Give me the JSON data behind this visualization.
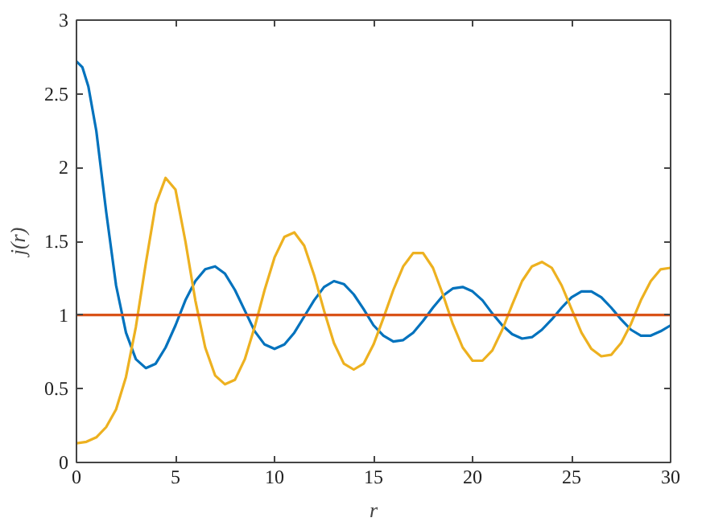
{
  "chart_data": {
    "type": "line",
    "xlabel": "r",
    "ylabel": "j(r)",
    "xlim": [
      0,
      30
    ],
    "ylim": [
      0,
      3
    ],
    "xticks": [
      0,
      5,
      10,
      15,
      20,
      25,
      30
    ],
    "yticks": [
      0,
      0.5,
      1,
      1.5,
      2,
      2.5,
      3
    ],
    "grid": false,
    "line_style": "solid",
    "marker": "none",
    "series": [
      {
        "color": "#0072bd",
        "x": [
          0,
          0.3,
          0.6,
          1.0,
          1.5,
          2.0,
          2.5,
          3.0,
          3.5,
          4.0,
          4.5,
          5.0,
          5.5,
          6.0,
          6.5,
          7.0,
          7.5,
          8.0,
          8.5,
          9.0,
          9.5,
          10.0,
          10.5,
          11.0,
          11.5,
          12.0,
          12.5,
          13.0,
          13.5,
          14.0,
          14.5,
          15.0,
          15.5,
          16.0,
          16.5,
          17.0,
          17.5,
          18.0,
          18.5,
          19.0,
          19.5,
          20.0,
          20.5,
          21.0,
          21.5,
          22.0,
          22.5,
          23.0,
          23.5,
          24.0,
          24.5,
          25.0,
          25.5,
          26.0,
          26.5,
          27.0,
          27.5,
          28.0,
          28.5,
          29.0,
          29.5,
          30.0
        ],
        "values": [
          2.72,
          2.68,
          2.55,
          2.25,
          1.7,
          1.2,
          0.88,
          0.7,
          0.64,
          0.67,
          0.78,
          0.93,
          1.1,
          1.23,
          1.31,
          1.33,
          1.28,
          1.17,
          1.03,
          0.89,
          0.8,
          0.77,
          0.8,
          0.88,
          0.99,
          1.1,
          1.19,
          1.23,
          1.21,
          1.14,
          1.04,
          0.93,
          0.86,
          0.82,
          0.83,
          0.88,
          0.96,
          1.05,
          1.13,
          1.18,
          1.19,
          1.16,
          1.1,
          1.01,
          0.93,
          0.87,
          0.84,
          0.85,
          0.9,
          0.97,
          1.05,
          1.12,
          1.16,
          1.16,
          1.12,
          1.05,
          0.97,
          0.9,
          0.86,
          0.86,
          0.89,
          0.93
        ]
      },
      {
        "color": "#edb120",
        "x": [
          0,
          0.5,
          1.0,
          1.5,
          2.0,
          2.5,
          3.0,
          3.5,
          4.0,
          4.5,
          5.0,
          5.5,
          6.0,
          6.5,
          7.0,
          7.5,
          8.0,
          8.5,
          9.0,
          9.5,
          10.0,
          10.5,
          11.0,
          11.5,
          12.0,
          12.5,
          13.0,
          13.5,
          14.0,
          14.5,
          15.0,
          15.5,
          16.0,
          16.5,
          17.0,
          17.5,
          18.0,
          18.5,
          19.0,
          19.5,
          20.0,
          20.5,
          21.0,
          21.5,
          22.0,
          22.5,
          23.0,
          23.5,
          24.0,
          24.5,
          25.0,
          25.5,
          26.0,
          26.5,
          27.0,
          27.5,
          28.0,
          28.5,
          29.0,
          29.5,
          30.0
        ],
        "values": [
          0.13,
          0.14,
          0.17,
          0.24,
          0.36,
          0.58,
          0.92,
          1.35,
          1.75,
          1.93,
          1.85,
          1.5,
          1.1,
          0.78,
          0.59,
          0.53,
          0.56,
          0.7,
          0.92,
          1.17,
          1.39,
          1.53,
          1.56,
          1.47,
          1.27,
          1.03,
          0.81,
          0.67,
          0.63,
          0.67,
          0.8,
          0.98,
          1.17,
          1.33,
          1.42,
          1.42,
          1.32,
          1.14,
          0.94,
          0.78,
          0.69,
          0.69,
          0.76,
          0.9,
          1.07,
          1.23,
          1.33,
          1.36,
          1.32,
          1.2,
          1.04,
          0.88,
          0.77,
          0.72,
          0.73,
          0.81,
          0.94,
          1.1,
          1.23,
          1.31,
          1.32
        ]
      },
      {
        "color": "#d95319",
        "x": [
          0,
          30
        ],
        "values": [
          1,
          1
        ]
      }
    ]
  }
}
